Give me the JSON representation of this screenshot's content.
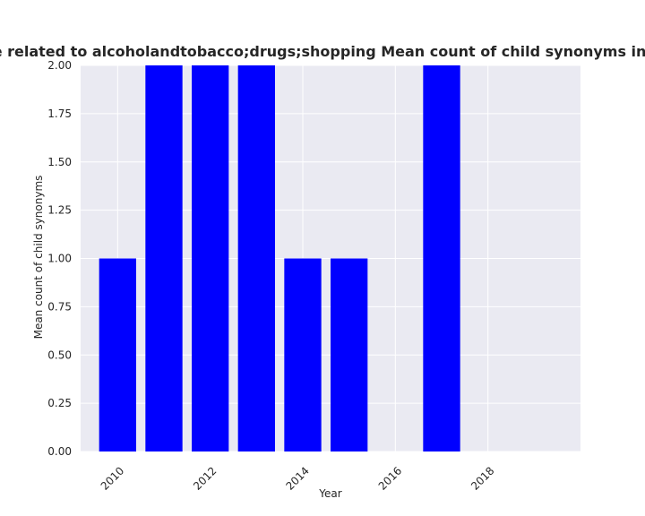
{
  "chart_data": {
    "type": "bar",
    "title": "es are related to alcoholandtobacco;drugs;shopping Mean count of child synonyms in privacy",
    "xlabel": "Year",
    "ylabel": "Mean count of child synonyms",
    "x": [
      2010,
      2011,
      2012,
      2013,
      2014,
      2015,
      2017
    ],
    "values": [
      1.0,
      2.0,
      2.0,
      2.0,
      1.0,
      1.0,
      2.0
    ],
    "xlim": [
      2009.2,
      2020.0
    ],
    "ylim": [
      0.0,
      2.0
    ],
    "xticks": [
      2010,
      2012,
      2014,
      2016,
      2018
    ],
    "xtick_labels": [
      "2010",
      "2012",
      "2014",
      "2016",
      "2018"
    ],
    "yticks": [
      0.0,
      0.25,
      0.5,
      0.75,
      1.0,
      1.25,
      1.5,
      1.75,
      2.0
    ],
    "ytick_labels": [
      "0.00",
      "0.25",
      "0.50",
      "0.75",
      "1.00",
      "1.25",
      "1.50",
      "1.75",
      "2.00"
    ],
    "bar_color": "#0000ff",
    "background_color": "#eaeaf2",
    "grid": true
  }
}
